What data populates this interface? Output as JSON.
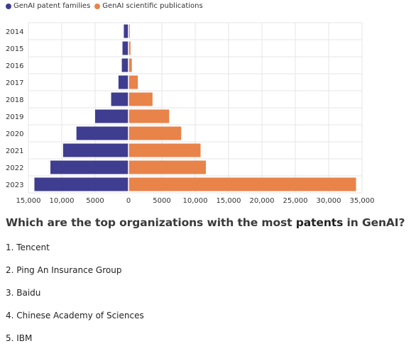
{
  "legend": [
    {
      "label": "GenAI patent families",
      "color": "#3f3d8f"
    },
    {
      "label": "GenAI scientific publications",
      "color": "#e8834a"
    }
  ],
  "chart_data": {
    "type": "bar",
    "orientation": "horizontal-diverging",
    "categories": [
      "2014",
      "2015",
      "2016",
      "2017",
      "2018",
      "2019",
      "2020",
      "2021",
      "2022",
      "2023"
    ],
    "series": [
      {
        "name": "GenAI patent families",
        "color": "#3f3d8f",
        "direction": "left",
        "values": [
          700,
          900,
          1000,
          1500,
          2600,
          5000,
          7800,
          9800,
          11700,
          14100
        ]
      },
      {
        "name": "GenAI scientific publications",
        "color": "#e8834a",
        "direction": "right",
        "values": [
          200,
          300,
          500,
          1400,
          3600,
          6100,
          7900,
          10800,
          11600,
          34100
        ]
      }
    ],
    "xticks": [
      "15,000",
      "10,000",
      "5000",
      "0",
      "5000",
      "10,000",
      "15,000",
      "20,000",
      "25,000",
      "30,000",
      "35,000"
    ],
    "xtick_values": [
      -15000,
      -10000,
      -5000,
      0,
      5000,
      10000,
      15000,
      20000,
      25000,
      30000,
      35000
    ],
    "xlim": [
      -15000,
      35000
    ],
    "grid": true
  },
  "question": {
    "prefix": "Which are the top organizations with the most ",
    "highlight": "patents",
    "suffix": " in GenAI?"
  },
  "answers": [
    "1. Tencent",
    "2. Ping An Insurance Group",
    "3. Baidu",
    "4. Chinese Academy of Sciences",
    "5. IBM"
  ]
}
